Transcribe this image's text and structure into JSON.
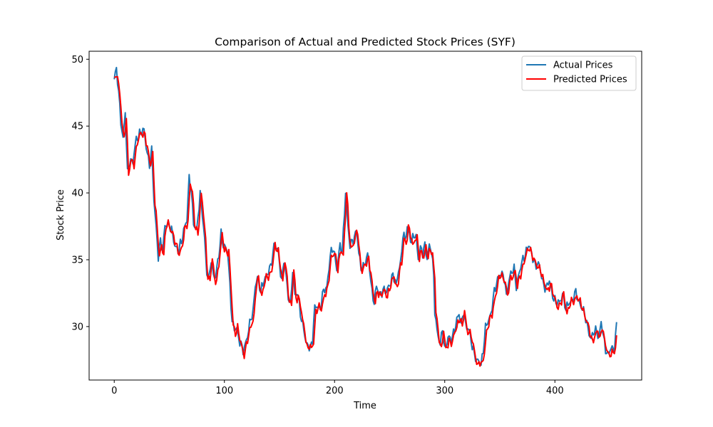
{
  "chart_data": {
    "type": "line",
    "title": "Comparison of Actual and Predicted Stock Prices (SYF)",
    "xlabel": "Time",
    "ylabel": "Stock Price",
    "xlim": [
      -22.8,
      478.8
    ],
    "ylim": [
      26.0,
      50.6
    ],
    "xticks": [
      0,
      100,
      200,
      300,
      400
    ],
    "yticks": [
      30,
      35,
      40,
      45,
      50
    ],
    "grid": false,
    "legend_position": "top-right",
    "x_range": [
      0,
      456
    ],
    "anchor_points": [
      [
        0,
        48.5
      ],
      [
        2,
        49.2
      ],
      [
        4,
        47.5
      ],
      [
        6,
        45.5
      ],
      [
        8,
        44.0
      ],
      [
        10,
        46.0
      ],
      [
        12,
        41.5
      ],
      [
        14,
        42.5
      ],
      [
        17,
        42.3
      ],
      [
        20,
        44.0
      ],
      [
        23,
        44.5
      ],
      [
        27,
        44.6
      ],
      [
        30,
        43.0
      ],
      [
        32,
        42.2
      ],
      [
        34,
        43.1
      ],
      [
        36,
        39.5
      ],
      [
        38,
        37.5
      ],
      [
        40,
        35.3
      ],
      [
        42,
        36.3
      ],
      [
        44,
        35.6
      ],
      [
        46,
        37.6
      ],
      [
        48,
        37.8
      ],
      [
        52,
        37.2
      ],
      [
        55,
        36.2
      ],
      [
        58,
        35.6
      ],
      [
        61,
        36.3
      ],
      [
        63,
        37.3
      ],
      [
        66,
        38.0
      ],
      [
        68,
        41.0
      ],
      [
        70,
        40.2
      ],
      [
        72,
        37.8
      ],
      [
        75,
        37.1
      ],
      [
        78,
        40.0
      ],
      [
        80,
        38.6
      ],
      [
        82,
        36.5
      ],
      [
        84,
        33.9
      ],
      [
        86,
        33.6
      ],
      [
        88,
        35.2
      ],
      [
        90,
        33.8
      ],
      [
        92,
        33.6
      ],
      [
        95,
        35.5
      ],
      [
        97,
        37.0
      ],
      [
        99,
        36.0
      ],
      [
        101,
        35.8
      ],
      [
        103,
        35.7
      ],
      [
        105,
        33.1
      ],
      [
        107,
        30.3
      ],
      [
        109,
        29.7
      ],
      [
        111,
        30.0
      ],
      [
        113,
        29.2
      ],
      [
        115,
        28.6
      ],
      [
        117,
        28.1
      ],
      [
        119,
        28.7
      ],
      [
        122,
        29.8
      ],
      [
        124,
        30.5
      ],
      [
        126,
        31.0
      ],
      [
        128,
        33.2
      ],
      [
        130,
        33.7
      ],
      [
        133,
        32.5
      ],
      [
        136,
        33.6
      ],
      [
        139,
        33.9
      ],
      [
        142,
        34.4
      ],
      [
        145,
        36.1
      ],
      [
        148,
        35.8
      ],
      [
        150,
        34.7
      ],
      [
        152,
        33.4
      ],
      [
        154,
        35.1
      ],
      [
        156,
        33.7
      ],
      [
        158,
        32.1
      ],
      [
        160,
        31.7
      ],
      [
        162,
        34.4
      ],
      [
        164,
        32.3
      ],
      [
        166,
        32.4
      ],
      [
        168,
        31.8
      ],
      [
        170,
        30.5
      ],
      [
        172,
        29.9
      ],
      [
        174,
        28.6
      ],
      [
        176,
        28.7
      ],
      [
        178,
        28.4
      ],
      [
        180,
        29.0
      ],
      [
        182,
        31.3
      ],
      [
        184,
        31.6
      ],
      [
        187,
        31.4
      ],
      [
        190,
        32.6
      ],
      [
        193,
        33.0
      ],
      [
        196,
        35.3
      ],
      [
        199,
        35.8
      ],
      [
        202,
        34.4
      ],
      [
        205,
        36.0
      ],
      [
        207,
        35.5
      ],
      [
        209,
        38.6
      ],
      [
        210,
        40.2
      ],
      [
        212,
        37.6
      ],
      [
        214,
        36.0
      ],
      [
        217,
        36.5
      ],
      [
        220,
        37.3
      ],
      [
        222,
        35.4
      ],
      [
        224,
        34.3
      ],
      [
        227,
        34.7
      ],
      [
        230,
        35.3
      ],
      [
        232,
        34.2
      ],
      [
        234,
        32.6
      ],
      [
        236,
        31.9
      ],
      [
        238,
        32.9
      ],
      [
        241,
        32.4
      ],
      [
        244,
        32.8
      ],
      [
        247,
        32.5
      ],
      [
        250,
        33.2
      ],
      [
        253,
        33.9
      ],
      [
        256,
        33.0
      ],
      [
        258,
        34.3
      ],
      [
        260,
        34.8
      ],
      [
        262,
        36.8
      ],
      [
        264,
        36.4
      ],
      [
        266,
        37.5
      ],
      [
        268,
        37.0
      ],
      [
        270,
        36.2
      ],
      [
        272,
        36.8
      ],
      [
        274,
        36.7
      ],
      [
        276,
        35.2
      ],
      [
        278,
        35.8
      ],
      [
        280,
        35.4
      ],
      [
        282,
        36.1
      ],
      [
        284,
        35.2
      ],
      [
        286,
        36.0
      ],
      [
        288,
        35.6
      ],
      [
        290,
        33.8
      ],
      [
        291,
        31.3
      ],
      [
        293,
        29.7
      ],
      [
        296,
        28.5
      ],
      [
        298,
        29.9
      ],
      [
        300,
        28.3
      ],
      [
        303,
        29.1
      ],
      [
        306,
        29.0
      ],
      [
        308,
        29.6
      ],
      [
        311,
        30.4
      ],
      [
        313,
        30.9
      ],
      [
        315,
        30.1
      ],
      [
        317,
        31.3
      ],
      [
        319,
        30.0
      ],
      [
        321,
        29.8
      ],
      [
        323,
        29.5
      ],
      [
        325,
        28.6
      ],
      [
        327,
        27.9
      ],
      [
        329,
        27.3
      ],
      [
        331,
        27.5
      ],
      [
        333,
        27.2
      ],
      [
        335,
        28.2
      ],
      [
        337,
        29.8
      ],
      [
        339,
        30.4
      ],
      [
        342,
        31.0
      ],
      [
        345,
        32.5
      ],
      [
        348,
        33.6
      ],
      [
        350,
        34.0
      ],
      [
        352,
        33.8
      ],
      [
        354,
        33.6
      ],
      [
        356,
        32.3
      ],
      [
        358,
        33.4
      ],
      [
        360,
        33.9
      ],
      [
        363,
        34.3
      ],
      [
        365,
        33.1
      ],
      [
        368,
        34.1
      ],
      [
        371,
        35.0
      ],
      [
        374,
        35.7
      ],
      [
        376,
        36.1
      ],
      [
        379,
        35.4
      ],
      [
        382,
        34.7
      ],
      [
        384,
        34.6
      ],
      [
        386,
        34.5
      ],
      [
        389,
        33.4
      ],
      [
        392,
        32.8
      ],
      [
        395,
        33.4
      ],
      [
        398,
        32.4
      ],
      [
        401,
        31.7
      ],
      [
        404,
        31.8
      ],
      [
        407,
        32.5
      ],
      [
        410,
        31.2
      ],
      [
        413,
        31.9
      ],
      [
        416,
        32.0
      ],
      [
        419,
        32.5
      ],
      [
        422,
        31.9
      ],
      [
        425,
        31.3
      ],
      [
        428,
        30.6
      ],
      [
        431,
        29.6
      ],
      [
        433,
        29.0
      ],
      [
        435,
        29.5
      ],
      [
        438,
        29.8
      ],
      [
        440,
        29.1
      ],
      [
        442,
        30.3
      ],
      [
        444,
        29.2
      ],
      [
        446,
        28.4
      ],
      [
        448,
        27.9
      ],
      [
        450,
        28.2
      ],
      [
        452,
        28.3
      ],
      [
        454,
        28.4
      ],
      [
        456,
        30.2
      ]
    ],
    "series": [
      {
        "name": "Actual Prices",
        "color": "#1f77b4",
        "noise_amp": 0.45,
        "lag": 0,
        "offset": 0.0
      },
      {
        "name": "Predicted Prices",
        "color": "#ff0000",
        "noise_amp": 0.4,
        "lag": 1,
        "offset": -0.15
      }
    ]
  }
}
